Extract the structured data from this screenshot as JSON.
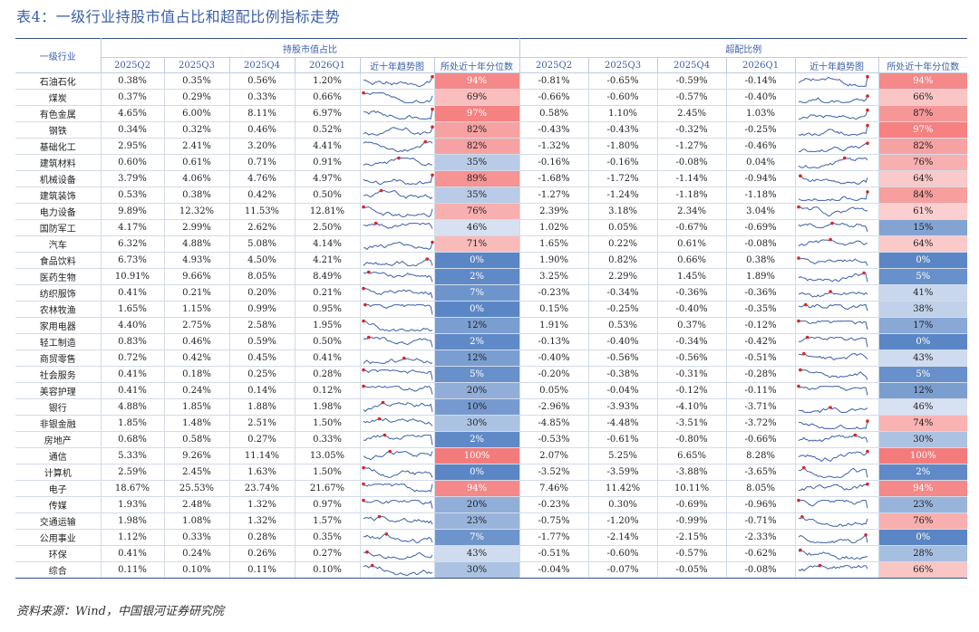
{
  "title": "表4：一级行业持股市值占比和超配比例指标走势",
  "source": "资料来源：Wind，中国银河证券研究院",
  "header": {
    "industry": "一级行业",
    "group1": "持股市值占比",
    "group2": "超配比例",
    "quarters": [
      "2025Q2",
      "2025Q3",
      "2025Q4",
      "2026Q1"
    ],
    "trend": "近十年趋势图",
    "percentile": "所处近十年分位数"
  },
  "colors": {
    "line": "#3b5fa8",
    "marker": "#d62728",
    "high": "#f47b7b",
    "low": "#5b86c5"
  },
  "rows": [
    {
      "name": "石油石化",
      "hold": [
        "0.38%",
        "0.35%",
        "0.56%",
        "1.20%"
      ],
      "hold_pct": 94,
      "over": [
        "-0.81%",
        "-0.65%",
        "-0.59%",
        "-0.14%"
      ],
      "over_pct": 94
    },
    {
      "name": "煤炭",
      "hold": [
        "0.37%",
        "0.29%",
        "0.33%",
        "0.66%"
      ],
      "hold_pct": 69,
      "over": [
        "-0.66%",
        "-0.60%",
        "-0.57%",
        "-0.40%"
      ],
      "over_pct": 66
    },
    {
      "name": "有色金属",
      "hold": [
        "4.65%",
        "6.00%",
        "8.11%",
        "6.97%"
      ],
      "hold_pct": 97,
      "over": [
        "0.58%",
        "1.10%",
        "2.45%",
        "1.03%"
      ],
      "over_pct": 87
    },
    {
      "name": "钢铁",
      "hold": [
        "0.34%",
        "0.32%",
        "0.46%",
        "0.52%"
      ],
      "hold_pct": 82,
      "over": [
        "-0.43%",
        "-0.43%",
        "-0.32%",
        "-0.25%"
      ],
      "over_pct": 97
    },
    {
      "name": "基础化工",
      "hold": [
        "2.95%",
        "2.41%",
        "3.20%",
        "4.41%"
      ],
      "hold_pct": 82,
      "over": [
        "-1.32%",
        "-1.80%",
        "-1.27%",
        "-0.46%"
      ],
      "over_pct": 82
    },
    {
      "name": "建筑材料",
      "hold": [
        "0.60%",
        "0.61%",
        "0.71%",
        "0.91%"
      ],
      "hold_pct": 35,
      "over": [
        "-0.16%",
        "-0.16%",
        "-0.08%",
        "0.04%"
      ],
      "over_pct": 76
    },
    {
      "name": "机械设备",
      "hold": [
        "3.79%",
        "4.06%",
        "4.76%",
        "4.97%"
      ],
      "hold_pct": 89,
      "over": [
        "-1.68%",
        "-1.72%",
        "-1.14%",
        "-0.94%"
      ],
      "over_pct": 64
    },
    {
      "name": "建筑装饰",
      "hold": [
        "0.53%",
        "0.38%",
        "0.42%",
        "0.50%"
      ],
      "hold_pct": 35,
      "over": [
        "-1.27%",
        "-1.24%",
        "-1.18%",
        "-1.18%"
      ],
      "over_pct": 84
    },
    {
      "name": "电力设备",
      "hold": [
        "9.89%",
        "12.32%",
        "11.53%",
        "12.81%"
      ],
      "hold_pct": 76,
      "over": [
        "2.39%",
        "3.18%",
        "2.34%",
        "3.04%"
      ],
      "over_pct": 61
    },
    {
      "name": "国防军工",
      "hold": [
        "4.17%",
        "2.99%",
        "2.62%",
        "2.50%"
      ],
      "hold_pct": 46,
      "over": [
        "1.02%",
        "0.05%",
        "-0.67%",
        "-0.69%"
      ],
      "over_pct": 15
    },
    {
      "name": "汽车",
      "hold": [
        "6.32%",
        "4.88%",
        "5.08%",
        "4.14%"
      ],
      "hold_pct": 71,
      "over": [
        "1.65%",
        "0.22%",
        "0.61%",
        "-0.08%"
      ],
      "over_pct": 64
    },
    {
      "name": "食品饮料",
      "hold": [
        "6.73%",
        "4.93%",
        "4.50%",
        "4.21%"
      ],
      "hold_pct": 0,
      "over": [
        "1.90%",
        "0.82%",
        "0.66%",
        "0.38%"
      ],
      "over_pct": 0
    },
    {
      "name": "医药生物",
      "hold": [
        "10.91%",
        "9.66%",
        "8.05%",
        "8.49%"
      ],
      "hold_pct": 2,
      "over": [
        "3.25%",
        "2.29%",
        "1.45%",
        "1.89%"
      ],
      "over_pct": 5
    },
    {
      "name": "纺织服饰",
      "hold": [
        "0.41%",
        "0.21%",
        "0.20%",
        "0.21%"
      ],
      "hold_pct": 7,
      "over": [
        "-0.23%",
        "-0.34%",
        "-0.36%",
        "-0.36%"
      ],
      "over_pct": 41
    },
    {
      "name": "农林牧渔",
      "hold": [
        "1.65%",
        "1.15%",
        "0.99%",
        "0.95%"
      ],
      "hold_pct": 0,
      "over": [
        "0.15%",
        "-0.25%",
        "-0.40%",
        "-0.35%"
      ],
      "over_pct": 38
    },
    {
      "name": "家用电器",
      "hold": [
        "4.40%",
        "2.75%",
        "2.58%",
        "1.95%"
      ],
      "hold_pct": 12,
      "over": [
        "1.91%",
        "0.53%",
        "0.37%",
        "-0.12%"
      ],
      "over_pct": 17
    },
    {
      "name": "轻工制造",
      "hold": [
        "0.83%",
        "0.46%",
        "0.59%",
        "0.50%"
      ],
      "hold_pct": 2,
      "over": [
        "-0.13%",
        "-0.40%",
        "-0.34%",
        "-0.42%"
      ],
      "over_pct": 0
    },
    {
      "name": "商贸零售",
      "hold": [
        "0.72%",
        "0.42%",
        "0.45%",
        "0.41%"
      ],
      "hold_pct": 12,
      "over": [
        "-0.40%",
        "-0.56%",
        "-0.56%",
        "-0.51%"
      ],
      "over_pct": 43
    },
    {
      "name": "社会服务",
      "hold": [
        "0.41%",
        "0.18%",
        "0.25%",
        "0.28%"
      ],
      "hold_pct": 5,
      "over": [
        "-0.20%",
        "-0.38%",
        "-0.31%",
        "-0.28%"
      ],
      "over_pct": 5
    },
    {
      "name": "美容护理",
      "hold": [
        "0.41%",
        "0.24%",
        "0.14%",
        "0.12%"
      ],
      "hold_pct": 20,
      "over": [
        "0.05%",
        "-0.04%",
        "-0.12%",
        "-0.11%"
      ],
      "over_pct": 12
    },
    {
      "name": "银行",
      "hold": [
        "4.88%",
        "1.85%",
        "1.88%",
        "1.98%"
      ],
      "hold_pct": 10,
      "over": [
        "-2.96%",
        "-3.93%",
        "-4.10%",
        "-3.71%"
      ],
      "over_pct": 46
    },
    {
      "name": "非银金融",
      "hold": [
        "1.85%",
        "1.48%",
        "2.51%",
        "1.50%"
      ],
      "hold_pct": 30,
      "over": [
        "-4.85%",
        "-4.48%",
        "-3.51%",
        "-3.72%"
      ],
      "over_pct": 74
    },
    {
      "name": "房地产",
      "hold": [
        "0.68%",
        "0.58%",
        "0.27%",
        "0.33%"
      ],
      "hold_pct": 2,
      "over": [
        "-0.53%",
        "-0.61%",
        "-0.80%",
        "-0.66%"
      ],
      "over_pct": 30
    },
    {
      "name": "通信",
      "hold": [
        "5.33%",
        "9.26%",
        "11.14%",
        "13.05%"
      ],
      "hold_pct": 100,
      "over": [
        "2.07%",
        "5.25%",
        "6.65%",
        "8.28%"
      ],
      "over_pct": 100
    },
    {
      "name": "计算机",
      "hold": [
        "2.59%",
        "2.45%",
        "1.63%",
        "1.50%"
      ],
      "hold_pct": 0,
      "over": [
        "-3.52%",
        "-3.59%",
        "-3.88%",
        "-3.65%"
      ],
      "over_pct": 2
    },
    {
      "name": "电子",
      "hold": [
        "18.67%",
        "25.53%",
        "23.74%",
        "21.67%"
      ],
      "hold_pct": 94,
      "over": [
        "7.46%",
        "11.42%",
        "10.11%",
        "8.05%"
      ],
      "over_pct": 94
    },
    {
      "name": "传媒",
      "hold": [
        "1.93%",
        "2.48%",
        "1.32%",
        "0.97%"
      ],
      "hold_pct": 20,
      "over": [
        "-0.23%",
        "0.30%",
        "-0.69%",
        "-0.96%"
      ],
      "over_pct": 23
    },
    {
      "name": "交通运输",
      "hold": [
        "1.98%",
        "1.08%",
        "1.32%",
        "1.57%"
      ],
      "hold_pct": 23,
      "over": [
        "-0.75%",
        "-1.20%",
        "-0.99%",
        "-0.71%"
      ],
      "over_pct": 76
    },
    {
      "name": "公用事业",
      "hold": [
        "1.12%",
        "0.33%",
        "0.28%",
        "0.35%"
      ],
      "hold_pct": 7,
      "over": [
        "-1.77%",
        "-2.14%",
        "-2.15%",
        "-2.33%"
      ],
      "over_pct": 0
    },
    {
      "name": "环保",
      "hold": [
        "0.41%",
        "0.24%",
        "0.26%",
        "0.27%"
      ],
      "hold_pct": 43,
      "over": [
        "-0.51%",
        "-0.60%",
        "-0.57%",
        "-0.62%"
      ],
      "over_pct": 28
    },
    {
      "name": "综合",
      "hold": [
        "0.11%",
        "0.10%",
        "0.11%",
        "0.10%"
      ],
      "hold_pct": 30,
      "over": [
        "-0.04%",
        "-0.07%",
        "-0.05%",
        "-0.08%"
      ],
      "over_pct": 66
    }
  ]
}
